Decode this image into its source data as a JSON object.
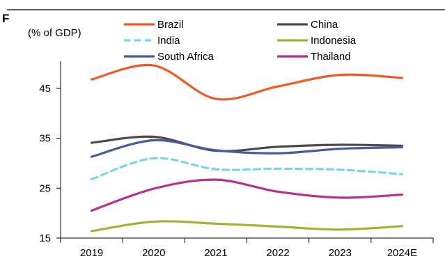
{
  "chart_data": {
    "type": "line",
    "title_fragment": "F",
    "unit_label": "(% of GDP)",
    "categories": [
      "2019",
      "2020",
      "2021",
      "2022",
      "2023",
      "2024E"
    ],
    "ylim": [
      15,
      50
    ],
    "yticks": [
      15,
      25,
      35,
      45
    ],
    "grid": false,
    "legend_position": "top",
    "series": [
      {
        "name": "Brazil",
        "color": "#f05a28",
        "dash": false,
        "values": [
          46.8,
          49.6,
          42.9,
          45.4,
          47.7,
          47.1
        ]
      },
      {
        "name": "China",
        "color": "#4a4a4a",
        "dash": false,
        "values": [
          34.1,
          35.3,
          32.5,
          33.3,
          33.7,
          33.5
        ]
      },
      {
        "name": "India",
        "color": "#7dd3e8",
        "dash": true,
        "values": [
          26.8,
          31.0,
          28.8,
          28.9,
          28.7,
          27.8
        ]
      },
      {
        "name": "Indonesia",
        "color": "#a8b032",
        "dash": false,
        "values": [
          16.4,
          18.3,
          17.9,
          17.3,
          16.7,
          17.4
        ]
      },
      {
        "name": "South Africa",
        "color": "#4a5aa0",
        "dash": false,
        "values": [
          31.3,
          34.6,
          32.6,
          32.0,
          32.9,
          33.2
        ]
      },
      {
        "name": "Thailand",
        "color": "#b8308a",
        "dash": false,
        "values": [
          20.5,
          24.9,
          26.7,
          24.3,
          23.1,
          23.7
        ]
      }
    ]
  }
}
